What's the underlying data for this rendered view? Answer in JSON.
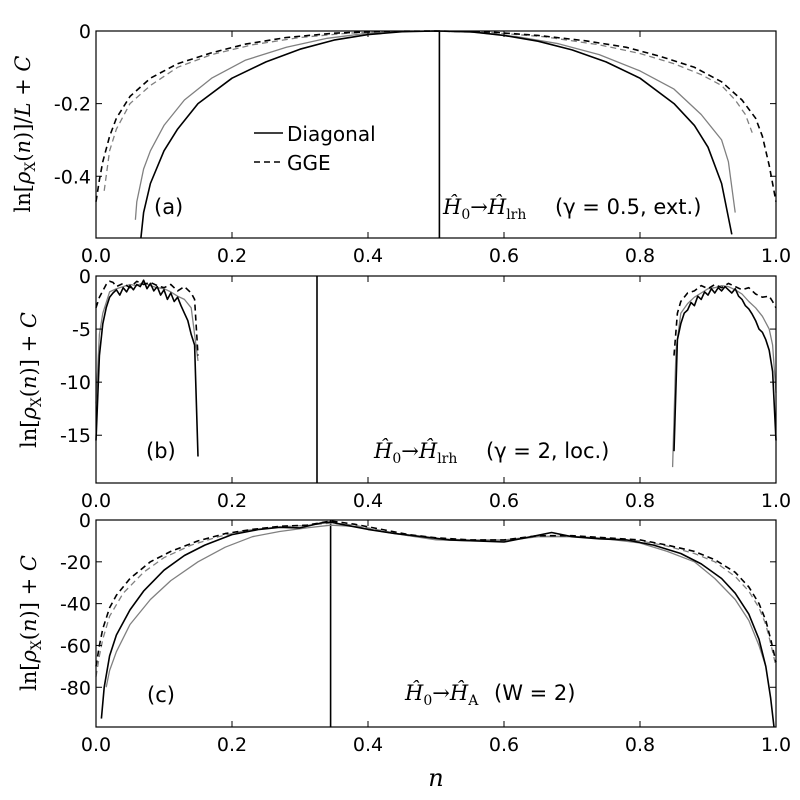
{
  "figure": {
    "xlabel": "n"
  },
  "colors": {
    "diagonal_black": "#000000",
    "diagonal_gray": "#808080",
    "gge_black": "#000000",
    "gge_gray": "#909090"
  },
  "legend": {
    "diagonal_label": "Diagonal",
    "gge_label": "GGE"
  },
  "chart_data": [
    {
      "type": "line",
      "panel_label": "(a)",
      "ylabel": "ln[ρX(n)]/L + C",
      "annotation": "Ĥ0 → Ĥlrh (γ = 0.5, ext.)",
      "annotation_parts": {
        "text": "(γ = 0.5, ext.)"
      },
      "xlim": [
        0.0,
        1.0
      ],
      "ylim": [
        -0.57,
        0.0
      ],
      "xticks": [
        "0.0",
        "0.2",
        "0.4",
        "0.6",
        "0.8",
        "1.0"
      ],
      "yticks": [
        {
          "value": 0.0,
          "label": "0"
        },
        {
          "value": -0.2,
          "label": "-0.2"
        },
        {
          "value": -0.4,
          "label": "-0.4"
        }
      ],
      "vline_x": 0.505,
      "series": [
        {
          "name": "Diagonal",
          "style": "solid",
          "color": "black",
          "x": [
            0.066,
            0.07,
            0.08,
            0.1,
            0.12,
            0.15,
            0.2,
            0.25,
            0.3,
            0.35,
            0.4,
            0.45,
            0.5,
            0.55,
            0.6,
            0.65,
            0.7,
            0.75,
            0.8,
            0.85,
            0.88,
            0.9,
            0.92,
            0.935
          ],
          "y": [
            -0.57,
            -0.5,
            -0.42,
            -0.33,
            -0.27,
            -0.2,
            -0.13,
            -0.085,
            -0.05,
            -0.025,
            -0.01,
            -0.002,
            0.0,
            -0.002,
            -0.012,
            -0.028,
            -0.052,
            -0.085,
            -0.13,
            -0.2,
            -0.26,
            -0.32,
            -0.42,
            -0.56
          ]
        },
        {
          "name": "",
          "style": "solid",
          "color": "gray",
          "x": [
            0.058,
            0.06,
            0.07,
            0.08,
            0.1,
            0.13,
            0.17,
            0.22,
            0.28,
            0.34,
            0.4,
            0.46,
            0.5,
            0.56,
            0.62,
            0.68,
            0.74,
            0.8,
            0.85,
            0.89,
            0.92,
            0.93,
            0.94
          ],
          "y": [
            -0.52,
            -0.47,
            -0.38,
            -0.33,
            -0.26,
            -0.19,
            -0.13,
            -0.08,
            -0.045,
            -0.02,
            -0.006,
            -0.001,
            0.0,
            -0.004,
            -0.016,
            -0.035,
            -0.065,
            -0.11,
            -0.16,
            -0.23,
            -0.3,
            -0.36,
            -0.5
          ]
        },
        {
          "name": "GGE",
          "style": "dashed",
          "color": "black",
          "x": [
            0.0,
            0.005,
            0.01,
            0.02,
            0.03,
            0.05,
            0.08,
            0.12,
            0.17,
            0.22,
            0.28,
            0.35,
            0.42,
            0.5,
            0.58,
            0.65,
            0.72,
            0.78,
            0.83,
            0.88,
            0.92,
            0.95,
            0.97,
            0.98,
            0.99,
            0.995,
            1.0
          ],
          "y": [
            -0.47,
            -0.41,
            -0.36,
            -0.29,
            -0.24,
            -0.18,
            -0.13,
            -0.09,
            -0.06,
            -0.036,
            -0.018,
            -0.006,
            -0.001,
            0.0,
            -0.003,
            -0.012,
            -0.027,
            -0.045,
            -0.07,
            -0.1,
            -0.14,
            -0.19,
            -0.24,
            -0.29,
            -0.37,
            -0.42,
            -0.47
          ]
        },
        {
          "name": "",
          "style": "dashed",
          "color": "gray",
          "x": [
            0.012,
            0.02,
            0.03,
            0.05,
            0.08,
            0.12,
            0.17,
            0.23,
            0.3,
            0.37,
            0.44,
            0.5,
            0.58,
            0.66,
            0.74,
            0.8,
            0.85,
            0.89,
            0.92,
            0.94,
            0.955,
            0.965
          ],
          "y": [
            -0.44,
            -0.33,
            -0.27,
            -0.2,
            -0.15,
            -0.1,
            -0.065,
            -0.038,
            -0.018,
            -0.006,
            -0.001,
            0.0,
            -0.004,
            -0.016,
            -0.038,
            -0.062,
            -0.09,
            -0.12,
            -0.15,
            -0.19,
            -0.23,
            -0.28
          ]
        }
      ]
    },
    {
      "type": "line",
      "panel_label": "(b)",
      "ylabel": "ln[ρX(n)] + C",
      "annotation": "Ĥ0 → Ĥlrh (γ = 2, loc.)",
      "annotation_parts": {
        "text": "(γ = 2, loc.)"
      },
      "xlim": [
        0.0,
        1.0
      ],
      "ylim": [
        -19.5,
        0.0
      ],
      "xticks": [
        "0.0",
        "0.2",
        "0.4",
        "0.6",
        "0.8",
        "1.0"
      ],
      "yticks": [
        {
          "value": 0,
          "label": "0"
        },
        {
          "value": -5,
          "label": "-5"
        },
        {
          "value": -10,
          "label": "-10"
        },
        {
          "value": -15,
          "label": "-15"
        }
      ],
      "vline_x": 0.325,
      "series": [
        {
          "name": "Diagonal",
          "style": "solid",
          "color": "black",
          "x": [
            0.0,
            0.005,
            0.01,
            0.015,
            0.02,
            0.025,
            0.03,
            0.035,
            0.04,
            0.045,
            0.05,
            0.055,
            0.06,
            0.065,
            0.07,
            0.075,
            0.08,
            0.085,
            0.09,
            0.095,
            0.1,
            0.105,
            0.11,
            0.115,
            0.12,
            0.125,
            0.13,
            0.135,
            0.14,
            0.145,
            0.15
          ],
          "y": [
            -15.5,
            -7.5,
            -4.5,
            -3.0,
            -2.0,
            -1.6,
            -1.3,
            -1.8,
            -1.1,
            -1.5,
            -0.9,
            -1.3,
            -0.8,
            -1.0,
            -0.4,
            -1.2,
            -0.7,
            -1.4,
            -1.0,
            -1.8,
            -1.3,
            -2.2,
            -1.6,
            -2.4,
            -2.0,
            -2.8,
            -3.5,
            -4.2,
            -5.5,
            -6.5,
            -17.0
          ]
        },
        {
          "name": "",
          "style": "solid",
          "color": "black",
          "x": [
            0.85,
            0.855,
            0.86,
            0.865,
            0.87,
            0.875,
            0.88,
            0.885,
            0.89,
            0.895,
            0.9,
            0.905,
            0.91,
            0.915,
            0.92,
            0.925,
            0.93,
            0.935,
            0.94,
            0.945,
            0.95,
            0.955,
            0.96,
            0.965,
            0.97,
            0.975,
            0.98,
            0.985,
            0.99,
            0.995,
            1.0
          ],
          "y": [
            -16.5,
            -6.0,
            -4.5,
            -3.5,
            -3.2,
            -2.5,
            -2.8,
            -1.9,
            -2.2,
            -1.5,
            -1.8,
            -1.2,
            -1.6,
            -1.1,
            -1.4,
            -1.0,
            -1.3,
            -1.6,
            -1.2,
            -1.9,
            -2.2,
            -2.8,
            -3.1,
            -3.6,
            -4.2,
            -5.0,
            -5.3,
            -6.0,
            -7.0,
            -9.0,
            -15.5
          ]
        },
        {
          "name": "",
          "style": "solid",
          "color": "gray",
          "x": [
            0.0,
            0.005,
            0.01,
            0.02,
            0.03,
            0.04,
            0.05,
            0.06,
            0.07,
            0.08,
            0.09,
            0.1,
            0.11,
            0.12,
            0.13,
            0.14,
            0.15
          ],
          "y": [
            -12.0,
            -5.5,
            -3.5,
            -1.5,
            -1.2,
            -1.0,
            -0.8,
            -0.9,
            -0.6,
            -0.9,
            -1.1,
            -1.2,
            -1.5,
            -1.9,
            -2.2,
            -3.0,
            -8.0
          ]
        },
        {
          "name": "",
          "style": "solid",
          "color": "gray",
          "x": [
            0.848,
            0.853,
            0.86,
            0.87,
            0.88,
            0.89,
            0.9,
            0.91,
            0.92,
            0.93,
            0.94,
            0.95,
            0.96,
            0.97,
            0.98,
            0.99,
            0.995,
            1.0
          ],
          "y": [
            -18.0,
            -7.0,
            -3.5,
            -2.6,
            -2.0,
            -1.6,
            -1.2,
            -1.1,
            -0.9,
            -1.0,
            -1.3,
            -1.7,
            -2.4,
            -3.0,
            -3.8,
            -5.0,
            -6.5,
            -11.0
          ]
        },
        {
          "name": "GGE",
          "style": "dashed",
          "color": "black",
          "x": [
            0.0,
            0.005,
            0.01,
            0.015,
            0.02,
            0.025,
            0.03,
            0.04,
            0.05,
            0.06,
            0.07,
            0.08,
            0.09,
            0.1,
            0.11,
            0.12,
            0.13,
            0.14,
            0.145,
            0.15
          ],
          "y": [
            -3.0,
            -2.0,
            -1.4,
            -0.8,
            -0.5,
            -0.6,
            -1.0,
            -0.7,
            -1.1,
            -0.5,
            -0.8,
            -0.6,
            -0.9,
            -1.1,
            -0.8,
            -1.4,
            -1.0,
            -1.6,
            -2.2,
            -7.5
          ]
        },
        {
          "name": "",
          "style": "dashed",
          "color": "black",
          "x": [
            0.85,
            0.855,
            0.86,
            0.87,
            0.88,
            0.89,
            0.9,
            0.91,
            0.92,
            0.93,
            0.94,
            0.95,
            0.96,
            0.97,
            0.98,
            0.99,
            0.995,
            1.0
          ],
          "y": [
            -7.5,
            -3.5,
            -2.4,
            -1.6,
            -1.4,
            -0.9,
            -1.2,
            -0.8,
            -1.1,
            -0.7,
            -1.0,
            -1.3,
            -1.1,
            -1.7,
            -2.0,
            -1.9,
            -2.4,
            -3.0
          ]
        }
      ]
    },
    {
      "type": "line",
      "panel_label": "(c)",
      "ylabel": "ln[ρX(n)] + C",
      "annotation": "Ĥ0 → ĤA (W = 2)",
      "annotation_parts": {
        "text": "(W = 2)"
      },
      "xlim": [
        0.0,
        1.0
      ],
      "ylim": [
        -99.0,
        0.0
      ],
      "xticks": [
        "0.0",
        "0.2",
        "0.4",
        "0.6",
        "0.8",
        "1.0"
      ],
      "yticks": [
        {
          "value": 0,
          "label": "0"
        },
        {
          "value": -20,
          "label": "-20"
        },
        {
          "value": -40,
          "label": "-40"
        },
        {
          "value": -60,
          "label": "-60"
        },
        {
          "value": -80,
          "label": "-80"
        }
      ],
      "vline_x": 0.345,
      "series": [
        {
          "name": "Diagonal",
          "style": "solid",
          "color": "black",
          "x": [
            0.008,
            0.012,
            0.02,
            0.03,
            0.05,
            0.07,
            0.1,
            0.13,
            0.16,
            0.2,
            0.24,
            0.27,
            0.3,
            0.33,
            0.345,
            0.36,
            0.4,
            0.44,
            0.48,
            0.52,
            0.56,
            0.6,
            0.64,
            0.67,
            0.7,
            0.74,
            0.78,
            0.82,
            0.86,
            0.89,
            0.92,
            0.94,
            0.96,
            0.975,
            0.985,
            0.992,
            0.997
          ],
          "y": [
            -95,
            -80,
            -65,
            -55,
            -43,
            -34,
            -24,
            -17,
            -12,
            -7,
            -4.5,
            -3.5,
            -3.8,
            -1.5,
            -1.0,
            -2.0,
            -4.5,
            -6.5,
            -8.0,
            -9.5,
            -10.0,
            -10.5,
            -8.0,
            -6.0,
            -8.0,
            -9.0,
            -9.5,
            -12,
            -16,
            -21,
            -28,
            -35,
            -45,
            -57,
            -70,
            -85,
            -99
          ]
        },
        {
          "name": "",
          "style": "solid",
          "color": "gray",
          "x": [
            0.015,
            0.02,
            0.03,
            0.05,
            0.08,
            0.11,
            0.15,
            0.19,
            0.23,
            0.27,
            0.31,
            0.345,
            0.38,
            0.42,
            0.46,
            0.5,
            0.55,
            0.6,
            0.65,
            0.7,
            0.75,
            0.8,
            0.84,
            0.88,
            0.91,
            0.94,
            0.96,
            0.975,
            0.985
          ],
          "y": [
            -80,
            -72,
            -63,
            -50,
            -38,
            -29,
            -20,
            -13,
            -8,
            -5.5,
            -3.8,
            -2.5,
            -3.0,
            -5.5,
            -7.5,
            -9.5,
            -10.0,
            -10.0,
            -8.0,
            -8.0,
            -9.0,
            -11,
            -15,
            -20,
            -28,
            -38,
            -48,
            -60,
            -70
          ]
        },
        {
          "name": "GGE",
          "style": "dashed",
          "color": "black",
          "x": [
            0.0,
            0.005,
            0.01,
            0.02,
            0.03,
            0.05,
            0.08,
            0.11,
            0.15,
            0.19,
            0.23,
            0.27,
            0.31,
            0.345,
            0.38,
            0.42,
            0.46,
            0.5,
            0.55,
            0.6,
            0.65,
            0.7,
            0.75,
            0.8,
            0.84,
            0.88,
            0.91,
            0.94,
            0.96,
            0.975,
            0.985,
            0.993,
            1.0
          ],
          "y": [
            -70,
            -60,
            -52,
            -42,
            -36,
            -28,
            -20,
            -15,
            -10,
            -6.5,
            -4.5,
            -3.0,
            -2.5,
            -0.5,
            -2.0,
            -4.5,
            -7.0,
            -8.5,
            -9.5,
            -9.5,
            -7.5,
            -7.5,
            -8.5,
            -9.5,
            -12,
            -15,
            -19,
            -25,
            -32,
            -40,
            -48,
            -58,
            -68
          ]
        },
        {
          "name": "",
          "style": "dashed",
          "color": "gray",
          "x": [
            0.0,
            0.005,
            0.01,
            0.02,
            0.04,
            0.07,
            0.1,
            0.14,
            0.18,
            0.22,
            0.27,
            0.31,
            0.345,
            0.38,
            0.42,
            0.46,
            0.5,
            0.55,
            0.6,
            0.65,
            0.7,
            0.75,
            0.8,
            0.84,
            0.88,
            0.91,
            0.94,
            0.96,
            0.975,
            0.985,
            0.993,
            1.0
          ],
          "y": [
            -75,
            -65,
            -57,
            -46,
            -35,
            -25,
            -18,
            -12,
            -8,
            -5.0,
            -3.3,
            -2.6,
            -1.5,
            -2.5,
            -5.0,
            -7.5,
            -9.0,
            -9.5,
            -9.5,
            -7.8,
            -7.8,
            -8.8,
            -10,
            -12.5,
            -16,
            -20,
            -27,
            -34,
            -42,
            -50,
            -60,
            -70
          ]
        }
      ]
    }
  ]
}
